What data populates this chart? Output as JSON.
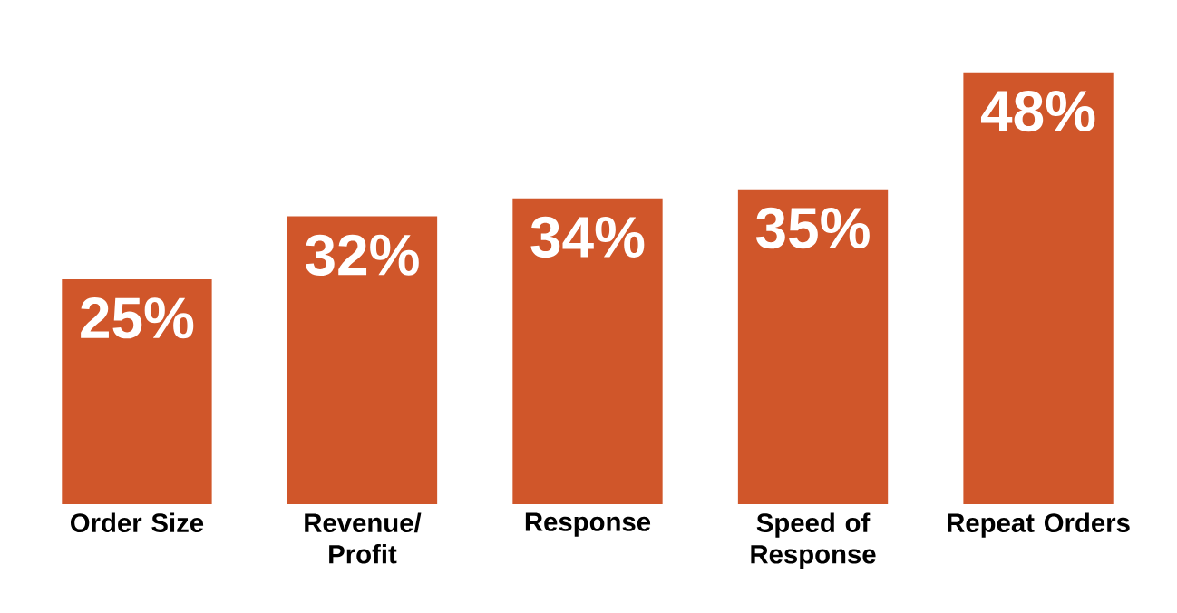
{
  "chart_data": {
    "type": "bar",
    "categories": [
      "Order Size",
      "Revenue/ Profit",
      "Response",
      "Speed of Response",
      "Repeat Orders"
    ],
    "values": [
      25,
      32,
      34,
      35,
      48
    ],
    "value_labels": [
      "25%",
      "32%",
      "34%",
      "35%",
      "48%"
    ],
    "color": "#d0562a"
  }
}
